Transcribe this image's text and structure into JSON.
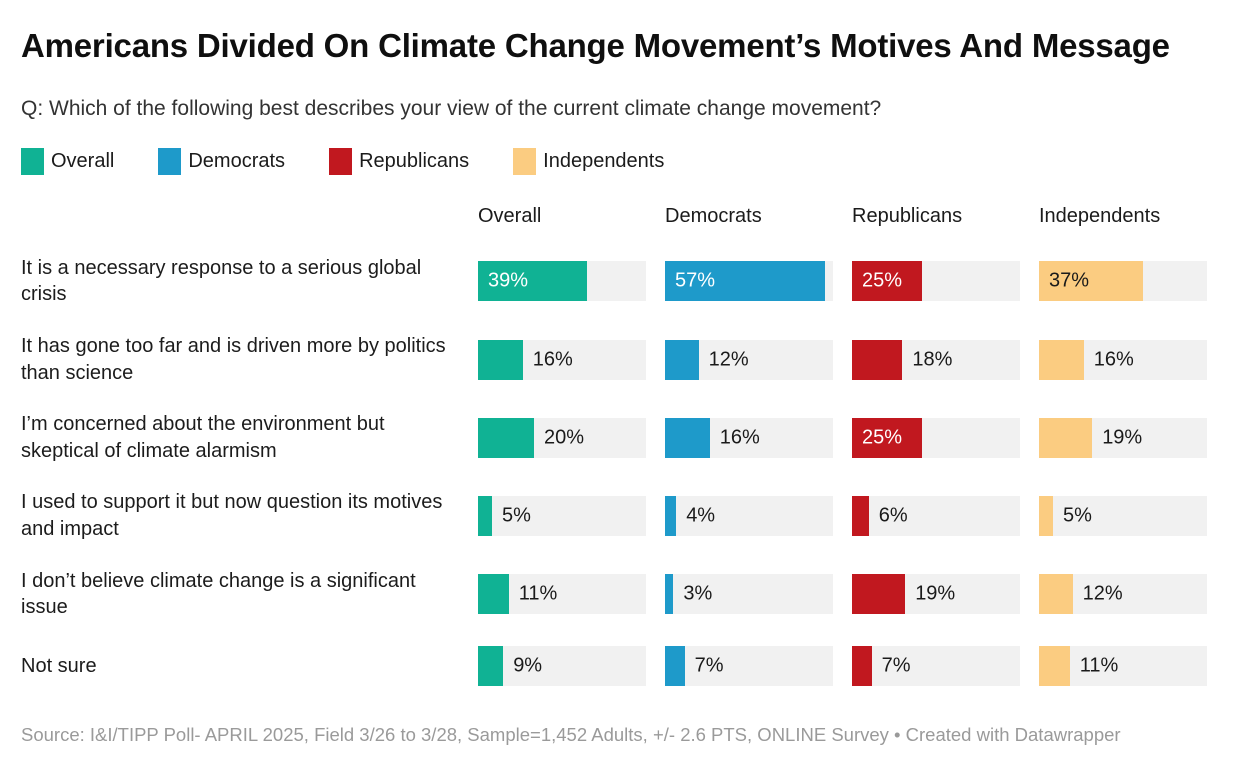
{
  "title": "Americans Divided On Climate Change Movement’s Motives And Message",
  "subtitle": "Q: Which of the following best describes your view of the current climate change movement?",
  "legend": [
    {
      "label": "Overall",
      "color": "#10b294"
    },
    {
      "label": "Democrats",
      "color": "#1e9aca"
    },
    {
      "label": "Republicans",
      "color": "#c1181f"
    },
    {
      "label": "Independents",
      "color": "#fbcc81"
    }
  ],
  "chart_data": {
    "type": "bar",
    "orientation": "horizontal",
    "groups": [
      "Overall",
      "Democrats",
      "Republicans",
      "Independents"
    ],
    "categories": [
      "It is a necessary response to a serious global crisis",
      "It has gone too far and is driven more by politics than science",
      "I’m concerned about the environment but skeptical of climate alarmism",
      "I used to support it but now question its motives and impact",
      "I don’t believe climate change is a significant issue",
      "Not sure"
    ],
    "series": [
      {
        "name": "Overall",
        "color": "#10b294",
        "values": [
          39,
          16,
          20,
          5,
          11,
          9
        ]
      },
      {
        "name": "Democrats",
        "color": "#1e9aca",
        "values": [
          57,
          12,
          16,
          4,
          3,
          7
        ]
      },
      {
        "name": "Republicans",
        "color": "#c1181f",
        "values": [
          25,
          18,
          25,
          6,
          19,
          7
        ]
      },
      {
        "name": "Independents",
        "color": "#fbcc81",
        "values": [
          37,
          16,
          19,
          5,
          12,
          11
        ]
      }
    ],
    "value_suffix": "%",
    "xlim": [
      0,
      60
    ],
    "track_color": "#f1f1f1",
    "grid": false,
    "legend_position": "top"
  },
  "footer": {
    "source": "Source: I&I/TIPP Poll- APRIL 2025, Field 3/26 to 3/28, Sample=1,452 Adults, +/- 2.6 PTS, ONLINE Survey • Created with Datawrapper"
  }
}
